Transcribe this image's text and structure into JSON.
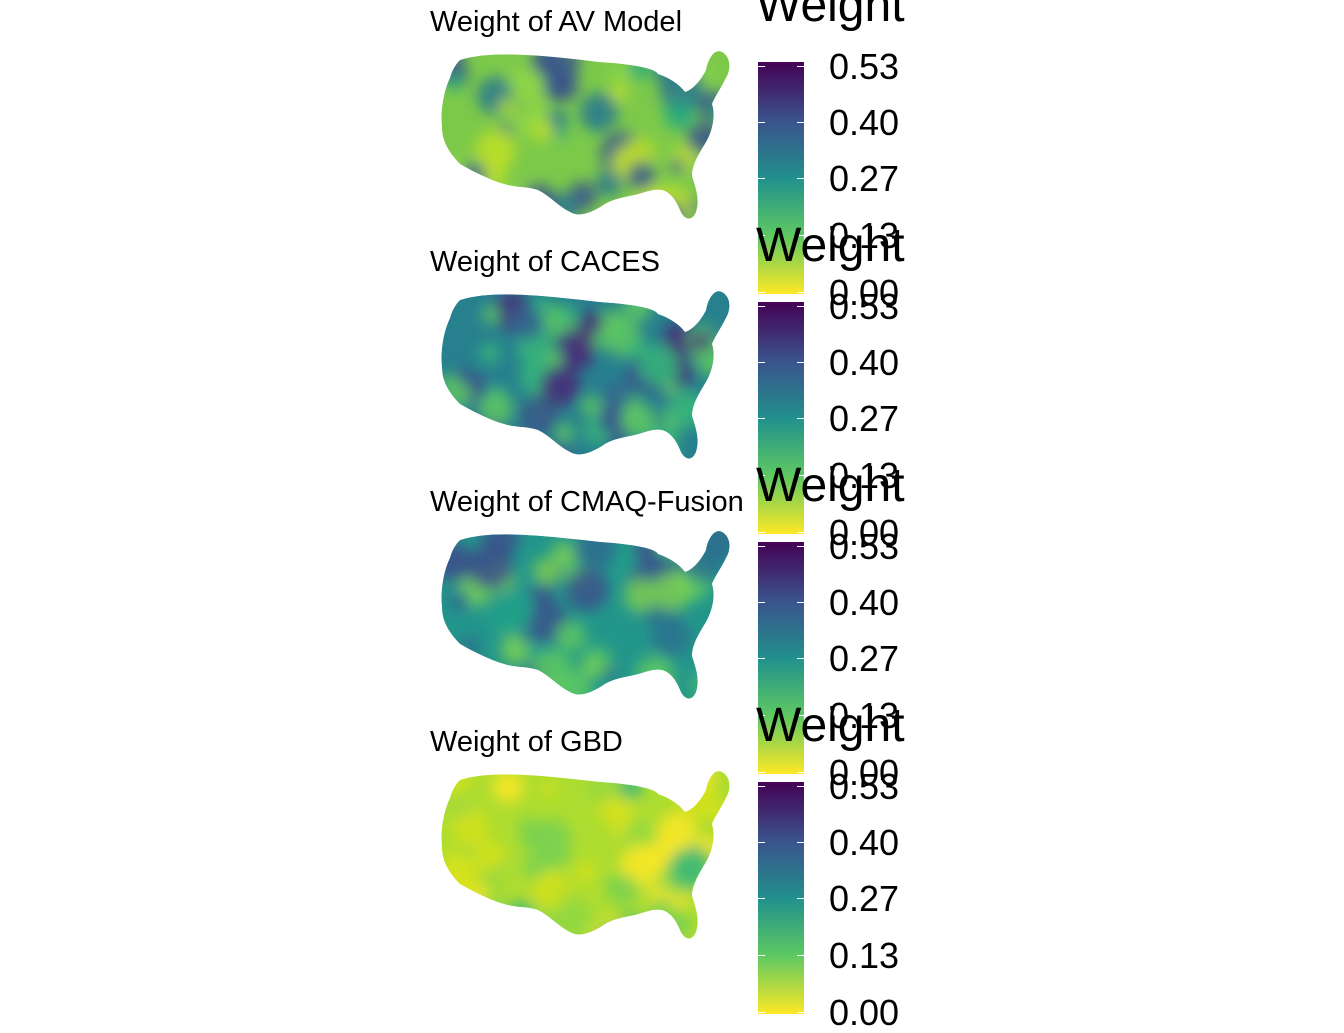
{
  "panels": [
    {
      "title": "Weight of AV Model",
      "legend_title": "Weight",
      "ticks": [
        "0.53",
        "0.40",
        "0.27",
        "0.13",
        "0.00"
      ],
      "palette": [
        "#440154",
        "#3b528b",
        "#21908d",
        "#5ec962",
        "#fde725"
      ],
      "map_base_color": "#7cc94a",
      "blob_palette": [
        "#2a788e",
        "#3a558c",
        "#8fd744",
        "#22a884",
        "#bddf26"
      ]
    },
    {
      "title": "Weight of CACES",
      "legend_title": "Weight",
      "ticks": [
        "0.53",
        "0.40",
        "0.27",
        "0.13",
        "0.00"
      ],
      "palette": [
        "#440154",
        "#3b528b",
        "#21908d",
        "#5ec962",
        "#fde725"
      ],
      "map_base_color": "#27808e",
      "blob_palette": [
        "#3b528b",
        "#482878",
        "#5ec962",
        "#35b779",
        "#31688e"
      ]
    },
    {
      "title": "Weight of CMAQ-Fusion",
      "legend_title": "Weight",
      "ticks": [
        "0.53",
        "0.40",
        "0.27",
        "0.13",
        "0.00"
      ],
      "palette": [
        "#440154",
        "#3b528b",
        "#21908d",
        "#5ec962",
        "#fde725"
      ],
      "map_base_color": "#23968b",
      "blob_palette": [
        "#2c728e",
        "#3b528b",
        "#5ec962",
        "#1fa188",
        "#7ad151"
      ]
    },
    {
      "title": "Weight of GBD",
      "legend_title": "Weight",
      "ticks": [
        "0.53",
        "0.40",
        "0.27",
        "0.13",
        "0.00"
      ],
      "palette": [
        "#440154",
        "#3b528b",
        "#21908d",
        "#5ec962",
        "#fde725"
      ],
      "map_base_color": "#addc30",
      "blob_palette": [
        "#d5e21a",
        "#7ad151",
        "#35b779",
        "#fde725",
        "#95d840"
      ]
    }
  ]
}
